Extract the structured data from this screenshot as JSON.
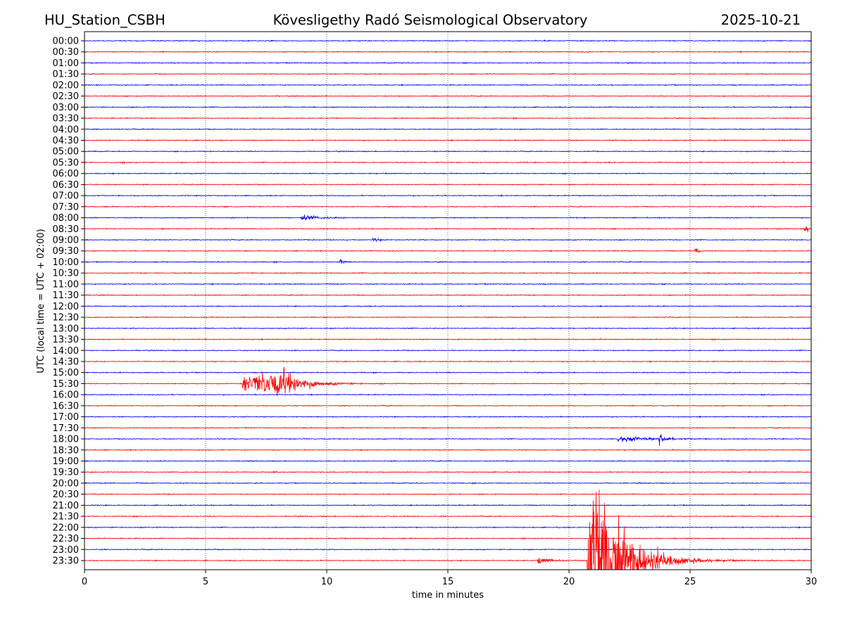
{
  "chart_data": {
    "type": "line",
    "title_left": "HU_Station_CSBH",
    "title": "Kövesligethy Radó Seismological Observatory",
    "title_right": "2025-10-21",
    "xlabel": "time in minutes",
    "ylabel": "UTC (local time = UTC + 02:00)",
    "xlim": [
      0,
      30
    ],
    "xticks": [
      "0",
      "5",
      "10",
      "15",
      "20",
      "25",
      "30"
    ],
    "grid": "vertical dotted lines every 5 minutes",
    "colors": [
      "#0000ff",
      "#ff0000"
    ],
    "rows": [
      "00:00",
      "00:30",
      "01:00",
      "01:30",
      "02:00",
      "02:30",
      "03:00",
      "03:30",
      "04:00",
      "04:30",
      "05:00",
      "05:30",
      "06:00",
      "06:30",
      "07:00",
      "07:30",
      "08:00",
      "08:30",
      "09:00",
      "09:30",
      "10:00",
      "10:30",
      "11:00",
      "11:30",
      "12:00",
      "12:30",
      "13:00",
      "13:30",
      "14:00",
      "14:30",
      "15:00",
      "15:30",
      "16:00",
      "16:30",
      "17:00",
      "17:30",
      "18:00",
      "18:30",
      "19:00",
      "19:30",
      "20:00",
      "20:30",
      "21:00",
      "21:30",
      "22:00",
      "22:30",
      "23:00",
      "23:30"
    ],
    "noise_amplitude_rows": 0.07,
    "events": [
      {
        "row": "05:30",
        "onset": 1.5,
        "peak": 1.6,
        "end": 1.9,
        "amplitude_rows": 0.15
      },
      {
        "row": "08:00",
        "onset": 8.9,
        "peak": 9.0,
        "end": 12.0,
        "amplitude_rows": 0.45
      },
      {
        "row": "08:30",
        "onset": 29.7,
        "peak": 29.85,
        "end": 30.0,
        "amplitude_rows": 0.55
      },
      {
        "row": "09:00",
        "onset": 11.9,
        "peak": 12.0,
        "end": 12.8,
        "amplitude_rows": 0.4
      },
      {
        "row": "09:30",
        "onset": 25.2,
        "peak": 25.3,
        "end": 25.6,
        "amplitude_rows": 0.55
      },
      {
        "row": "10:00",
        "onset": 10.5,
        "peak": 10.6,
        "end": 11.1,
        "amplitude_rows": 0.5
      },
      {
        "row": "15:30",
        "onset": 6.5,
        "peak": 8.2,
        "end": 12.5,
        "amplitude_rows": 2.1
      },
      {
        "row": "18:00",
        "onset": 22.0,
        "peak": 22.05,
        "end": 27.5,
        "amplitude_rows": 0.5
      },
      {
        "row": "18:00",
        "onset": 23.7,
        "peak": 23.75,
        "end": 25.0,
        "amplitude_rows": 0.8
      },
      {
        "row": "19:30",
        "onset": 7.8,
        "peak": 7.9,
        "end": 8.5,
        "amplitude_rows": 0.15
      },
      {
        "row": "23:30",
        "onset": 18.7,
        "peak": 18.75,
        "end": 20.7,
        "amplitude_rows": 0.55
      },
      {
        "row": "23:30",
        "onset": 20.75,
        "peak": 21.2,
        "end": 26.5,
        "amplitude_rows": 14
      }
    ]
  }
}
